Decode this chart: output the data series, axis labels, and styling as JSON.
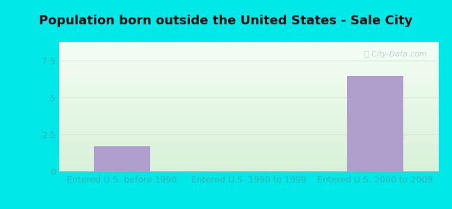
{
  "title": "Population born outside the United States - Sale City",
  "categories": [
    "Entered U.S. before 1990",
    "Entered U.S. 1990 to 1999",
    "Entered U.S. 2000 to 2009"
  ],
  "values": [
    1.7,
    0,
    6.5
  ],
  "bar_color": "#b09fcc",
  "ylim": [
    0,
    8.8
  ],
  "yticks": [
    0,
    2.5,
    5,
    7.5
  ],
  "outer_bg": "#00e8e8",
  "plot_bg_topleft": "#e8f5e2",
  "plot_bg_topright": "#f0faf8",
  "plot_bg_bottom": "#d8f0d8",
  "tick_label_color": "#3ab0b0",
  "title_color": "#111111",
  "grid_color": "#d0e8d0",
  "title_fontsize": 13,
  "tick_fontsize": 9,
  "bar_width": 0.45
}
